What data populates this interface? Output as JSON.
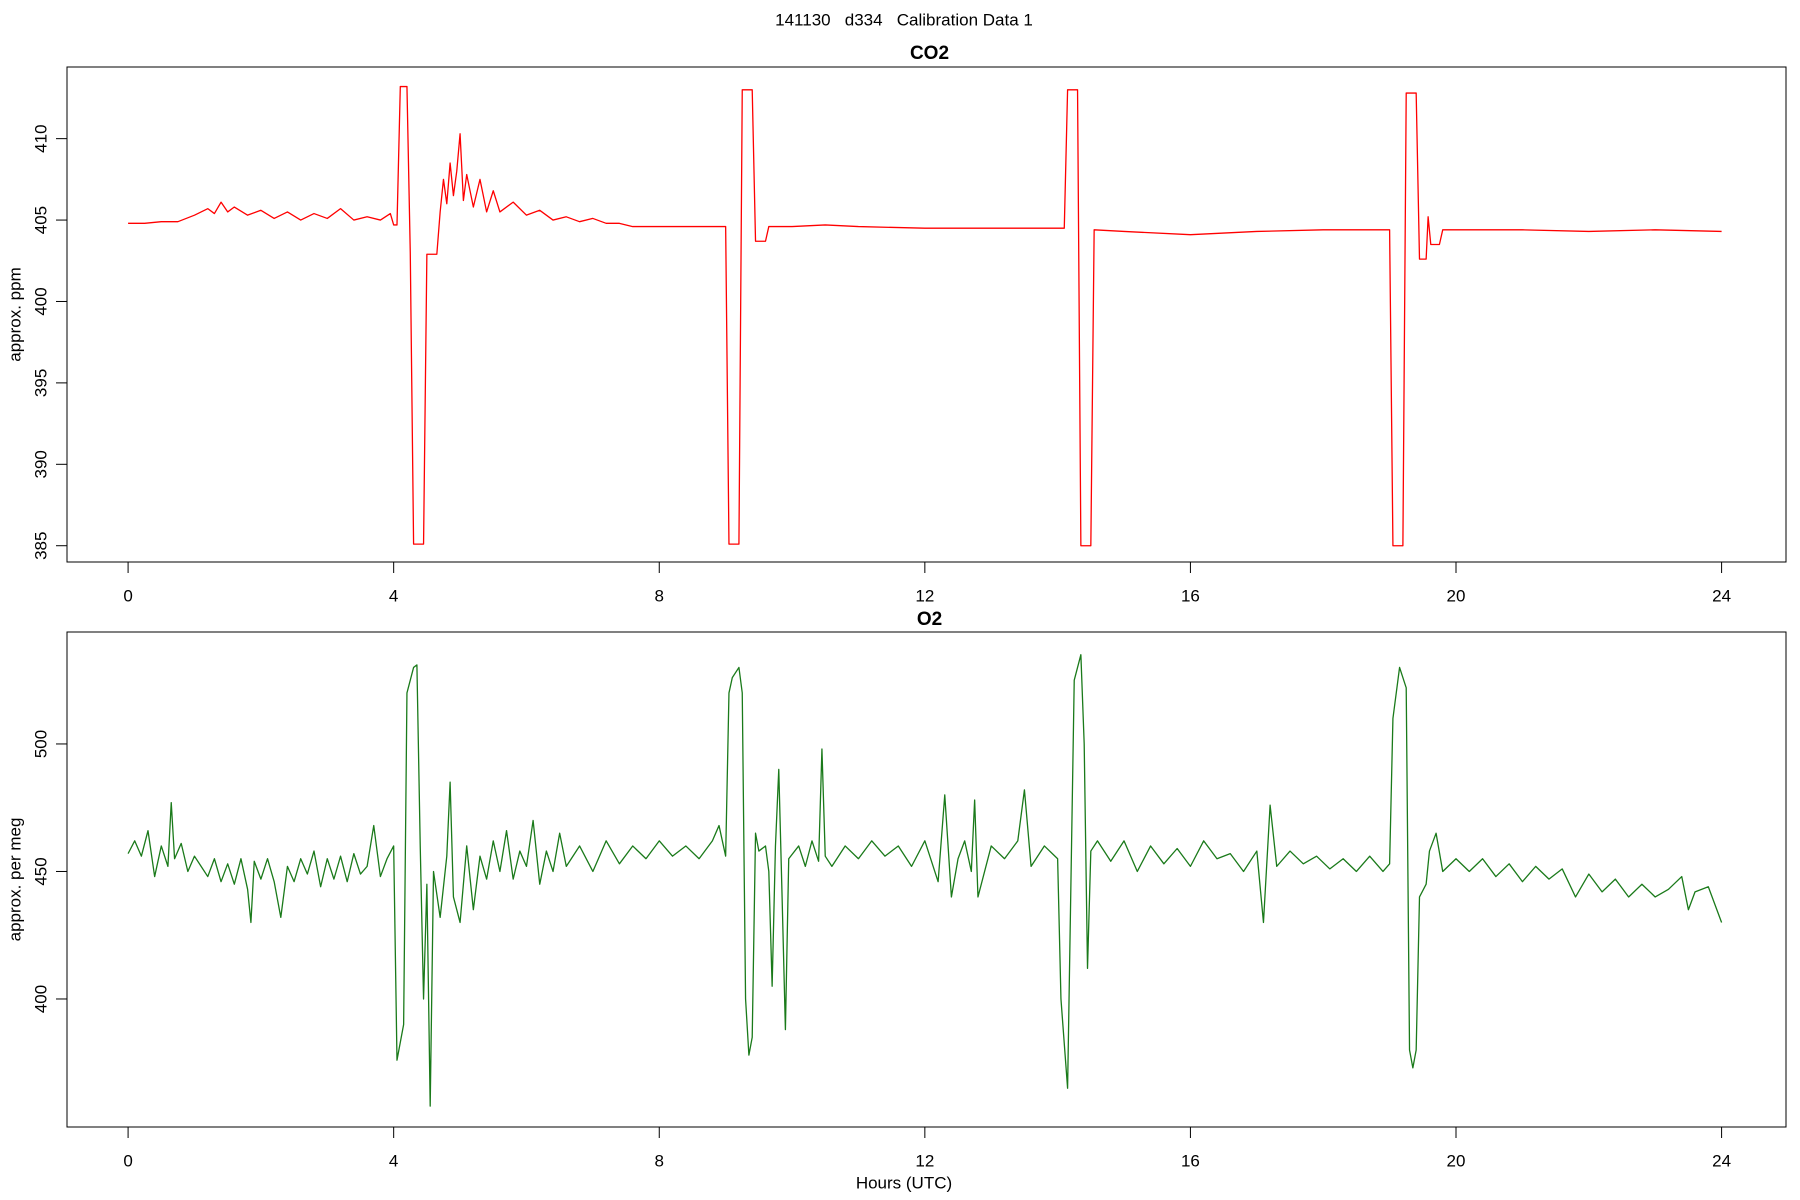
{
  "title": "141130   d334   Calibration Data 1",
  "chart_data": [
    {
      "type": "line",
      "title": "CO2",
      "y_label": "approx. ppm",
      "x": [
        0,
        0.25,
        0.5,
        0.75,
        1.0,
        1.2,
        1.3,
        1.4,
        1.5,
        1.6,
        1.8,
        2.0,
        2.2,
        2.4,
        2.6,
        2.8,
        3.0,
        3.2,
        3.4,
        3.6,
        3.8,
        3.95,
        4.0,
        4.05,
        4.1,
        4.2,
        4.25,
        4.3,
        4.45,
        4.5,
        4.65,
        4.7,
        4.75,
        4.8,
        4.85,
        4.9,
        4.95,
        5.0,
        5.05,
        5.1,
        5.2,
        5.3,
        5.4,
        5.5,
        5.6,
        5.8,
        6.0,
        6.2,
        6.4,
        6.6,
        6.8,
        7.0,
        7.2,
        7.4,
        7.6,
        8.0,
        8.5,
        9.0,
        9.05,
        9.2,
        9.25,
        9.4,
        9.45,
        9.6,
        9.65,
        10.0,
        10.5,
        11,
        12,
        13,
        14.1,
        14.15,
        14.3,
        14.35,
        14.5,
        14.55,
        15,
        16,
        17,
        18,
        19.0,
        19.05,
        19.2,
        19.25,
        19.4,
        19.45,
        19.55,
        19.58,
        19.62,
        19.75,
        19.8,
        20,
        21,
        22,
        23,
        24
      ],
      "series": [
        {
          "name": "CO2",
          "color": "#ff0000",
          "values": [
            404.8,
            404.8,
            404.9,
            404.9,
            405.3,
            405.7,
            405.4,
            406.1,
            405.5,
            405.8,
            405.3,
            405.6,
            405.1,
            405.5,
            405.0,
            405.4,
            405.1,
            405.7,
            405.0,
            405.2,
            405.0,
            405.4,
            404.7,
            404.7,
            413.2,
            413.2,
            403,
            385.1,
            385.1,
            402.9,
            402.9,
            405.5,
            407.5,
            406,
            408.5,
            406.5,
            408,
            410.3,
            406.2,
            407.8,
            405.8,
            407.5,
            405.5,
            406.8,
            405.5,
            406.1,
            405.3,
            405.6,
            405.0,
            405.2,
            404.9,
            405.1,
            404.8,
            404.8,
            404.6,
            404.6,
            404.6,
            404.6,
            385.1,
            385.1,
            413,
            413,
            403.7,
            403.7,
            404.6,
            404.6,
            404.7,
            404.6,
            404.5,
            404.5,
            404.5,
            413,
            413,
            385,
            385,
            404.4,
            404.3,
            404.1,
            404.3,
            404.4,
            404.4,
            385,
            385,
            412.8,
            412.8,
            402.6,
            402.6,
            405.2,
            403.5,
            403.5,
            404.4,
            404.4,
            404.4,
            404.3,
            404.4,
            404.3
          ]
        }
      ],
      "xlim": [
        -0.92,
        24.97
      ],
      "ylim": [
        384.0,
        414.4
      ],
      "xticks": [
        0,
        4,
        8,
        12,
        16,
        20,
        24
      ],
      "yticks": [
        385,
        390,
        395,
        400,
        405,
        410
      ]
    },
    {
      "type": "line",
      "title": "O2",
      "y_label": "approx. per meg",
      "x_label": "Hours (UTC)",
      "x": [
        0,
        0.1,
        0.2,
        0.3,
        0.4,
        0.5,
        0.6,
        0.65,
        0.7,
        0.8,
        0.9,
        1.0,
        1.1,
        1.2,
        1.3,
        1.4,
        1.5,
        1.6,
        1.7,
        1.8,
        1.85,
        1.9,
        2.0,
        2.1,
        2.2,
        2.3,
        2.4,
        2.5,
        2.6,
        2.7,
        2.8,
        2.9,
        3.0,
        3.1,
        3.2,
        3.3,
        3.4,
        3.5,
        3.6,
        3.7,
        3.8,
        3.9,
        4.0,
        4.05,
        4.15,
        4.2,
        4.3,
        4.35,
        4.4,
        4.45,
        4.5,
        4.55,
        4.6,
        4.7,
        4.8,
        4.85,
        4.9,
        5.0,
        5.1,
        5.2,
        5.3,
        5.4,
        5.5,
        5.6,
        5.7,
        5.8,
        5.9,
        6.0,
        6.1,
        6.2,
        6.3,
        6.4,
        6.5,
        6.6,
        6.8,
        7.0,
        7.2,
        7.4,
        7.6,
        7.8,
        8.0,
        8.2,
        8.4,
        8.6,
        8.8,
        8.9,
        9.0,
        9.05,
        9.1,
        9.2,
        9.25,
        9.3,
        9.35,
        9.4,
        9.45,
        9.5,
        9.6,
        9.65,
        9.7,
        9.75,
        9.8,
        9.85,
        9.9,
        9.95,
        10.1,
        10.2,
        10.3,
        10.4,
        10.45,
        10.5,
        10.6,
        10.8,
        11.0,
        11.2,
        11.4,
        11.6,
        11.8,
        12.0,
        12.2,
        12.3,
        12.4,
        12.5,
        12.6,
        12.7,
        12.75,
        12.8,
        13.0,
        13.2,
        13.4,
        13.5,
        13.6,
        13.8,
        14.0,
        14.05,
        14.15,
        14.25,
        14.3,
        14.35,
        14.4,
        14.45,
        14.5,
        14.6,
        14.8,
        15.0,
        15.2,
        15.4,
        15.6,
        15.8,
        16.0,
        16.2,
        16.4,
        16.6,
        16.8,
        17.0,
        17.1,
        17.2,
        17.3,
        17.5,
        17.7,
        17.9,
        18.1,
        18.3,
        18.5,
        18.7,
        18.9,
        19.0,
        19.05,
        19.15,
        19.25,
        19.3,
        19.35,
        19.4,
        19.45,
        19.55,
        19.6,
        19.7,
        19.8,
        20.0,
        20.2,
        20.4,
        20.6,
        20.8,
        21.0,
        21.2,
        21.4,
        21.6,
        21.8,
        22.0,
        22.2,
        22.4,
        22.6,
        22.8,
        23.0,
        23.2,
        23.4,
        23.5,
        23.6,
        23.8,
        24
      ],
      "series": [
        {
          "name": "O2",
          "color": "#1a7a1a",
          "values": [
            457,
            462,
            456,
            466,
            448,
            460,
            452,
            477,
            455,
            461,
            450,
            456,
            452,
            448,
            455,
            446,
            453,
            445,
            455,
            443,
            430,
            454,
            447,
            455,
            446,
            432,
            452,
            446,
            455,
            449,
            458,
            444,
            455,
            447,
            456,
            446,
            457,
            449,
            452,
            468,
            448,
            455,
            460,
            376,
            390,
            520,
            530,
            531,
            460,
            400,
            445,
            358,
            450,
            432,
            456,
            485,
            440,
            430,
            460,
            435,
            456,
            447,
            462,
            450,
            466,
            447,
            458,
            452,
            470,
            445,
            458,
            450,
            465,
            452,
            460,
            450,
            462,
            453,
            460,
            455,
            462,
            456,
            460,
            455,
            462,
            468,
            456,
            520,
            526,
            530,
            520,
            400,
            378,
            385,
            465,
            458,
            460,
            450,
            405,
            460,
            490,
            440,
            388,
            455,
            460,
            452,
            462,
            454,
            498,
            456,
            452,
            460,
            455,
            462,
            456,
            460,
            452,
            462,
            446,
            480,
            440,
            455,
            462,
            450,
            478,
            440,
            460,
            455,
            462,
            482,
            452,
            460,
            455,
            400,
            365,
            525,
            530,
            535,
            500,
            412,
            458,
            462,
            454,
            462,
            450,
            460,
            453,
            459,
            452,
            462,
            455,
            457,
            450,
            458,
            430,
            476,
            452,
            458,
            453,
            456,
            451,
            455,
            450,
            456,
            450,
            453,
            510,
            530,
            522,
            380,
            373,
            380,
            440,
            445,
            458,
            465,
            450,
            455,
            450,
            455,
            448,
            453,
            446,
            452,
            447,
            451,
            440,
            449,
            442,
            447,
            440,
            445,
            440,
            443,
            448,
            435,
            442,
            444,
            430
          ]
        }
      ],
      "xlim": [
        -0.92,
        24.97
      ],
      "ylim": [
        349.8,
        543.9
      ],
      "xticks": [
        0,
        4,
        8,
        12,
        16,
        20,
        24
      ],
      "yticks": [
        400,
        450,
        500
      ]
    }
  ]
}
